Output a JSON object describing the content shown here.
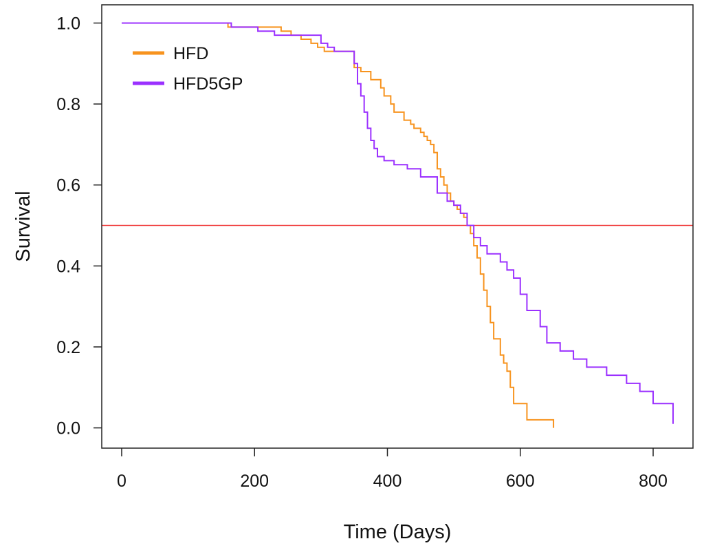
{
  "chart_data": {
    "type": "line",
    "title": "",
    "xlabel": "Time (Days)",
    "ylabel": "Survival",
    "xlim": [
      -30,
      860
    ],
    "ylim": [
      -0.05,
      1.045
    ],
    "x_ticks": [
      0,
      200,
      400,
      600,
      800
    ],
    "y_ticks": [
      0.0,
      0.2,
      0.4,
      0.6,
      0.8,
      1.0
    ],
    "x_tick_labels": [
      "0",
      "200",
      "400",
      "600",
      "800"
    ],
    "y_tick_labels": [
      "0.0",
      "0.2",
      "0.4",
      "0.6",
      "0.8",
      "1.0"
    ],
    "grid": false,
    "legend_position": "top-left",
    "reference_line": {
      "y": 0.5,
      "color": "#f03c3c"
    },
    "series": [
      {
        "name": "HFD",
        "color": "#f7931e",
        "step": true,
        "x": [
          0,
          160,
          240,
          255,
          270,
          285,
          295,
          305,
          315,
          350,
          360,
          375,
          390,
          395,
          405,
          410,
          425,
          435,
          440,
          450,
          455,
          460,
          465,
          470,
          475,
          480,
          485,
          490,
          495,
          500,
          505,
          510,
          515,
          520,
          525,
          530,
          535,
          540,
          545,
          550,
          555,
          560,
          570,
          575,
          580,
          585,
          590,
          610,
          650
        ],
        "y": [
          1.0,
          0.99,
          0.98,
          0.97,
          0.96,
          0.95,
          0.94,
          0.93,
          0.93,
          0.89,
          0.88,
          0.86,
          0.84,
          0.82,
          0.8,
          0.78,
          0.76,
          0.75,
          0.74,
          0.73,
          0.72,
          0.71,
          0.7,
          0.68,
          0.64,
          0.62,
          0.6,
          0.58,
          0.56,
          0.55,
          0.54,
          0.53,
          0.52,
          0.5,
          0.48,
          0.45,
          0.42,
          0.38,
          0.34,
          0.3,
          0.26,
          0.22,
          0.18,
          0.16,
          0.14,
          0.1,
          0.06,
          0.02,
          0.0
        ]
      },
      {
        "name": "HFD5GP",
        "color": "#9b30ff",
        "step": true,
        "x": [
          0,
          165,
          205,
          230,
          300,
          310,
          320,
          350,
          355,
          360,
          365,
          370,
          375,
          380,
          385,
          395,
          410,
          430,
          450,
          475,
          490,
          500,
          510,
          520,
          530,
          540,
          550,
          570,
          580,
          590,
          600,
          610,
          630,
          640,
          660,
          680,
          700,
          730,
          760,
          780,
          800,
          830
        ],
        "y": [
          1.0,
          0.99,
          0.98,
          0.97,
          0.95,
          0.94,
          0.93,
          0.9,
          0.85,
          0.82,
          0.78,
          0.74,
          0.71,
          0.69,
          0.67,
          0.66,
          0.65,
          0.64,
          0.62,
          0.58,
          0.56,
          0.55,
          0.53,
          0.5,
          0.47,
          0.45,
          0.43,
          0.41,
          0.39,
          0.37,
          0.33,
          0.29,
          0.25,
          0.21,
          0.19,
          0.17,
          0.15,
          0.13,
          0.11,
          0.09,
          0.06,
          0.01
        ]
      }
    ]
  }
}
